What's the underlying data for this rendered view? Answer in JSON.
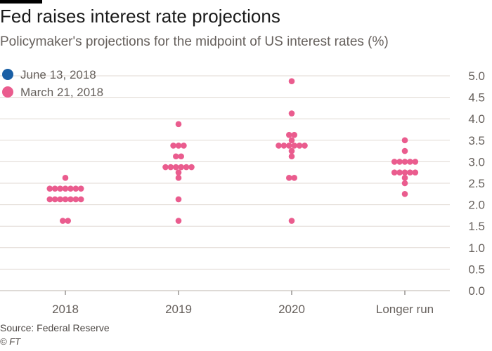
{
  "title": "Fed raises interest rate projections",
  "subtitle": "Policymaker's projections for the midpoint of US interest rates (%)",
  "source": "Source: Federal Reserve",
  "credit": "© FT",
  "colors": {
    "june": "#1a5fa5",
    "march": "#ea5c8e",
    "grid": "#e0d9d3",
    "text": "#66605c"
  },
  "chart_data": {
    "type": "scatter",
    "title": "Fed raises interest rate projections",
    "subtitle": "Policymaker's projections for the midpoint of US interest rates (%)",
    "categories": [
      "2018",
      "2019",
      "2020",
      "Longer run"
    ],
    "ylim": [
      0,
      5
    ],
    "yticks": [
      "5.0",
      "4.5",
      "4.0",
      "3.5",
      "3.0",
      "2.5",
      "2.0",
      "1.5",
      "1.0",
      "0.5",
      "0.0"
    ],
    "grid": true,
    "legend_position": "top-left",
    "series": [
      {
        "name": "June 13, 2018",
        "color": "#1a5fa5",
        "dots": []
      },
      {
        "name": "March 21, 2018",
        "color": "#ea5c8e",
        "dots": [
          {
            "category": "2018",
            "rates": [
              {
                "value": 2.625,
                "count": 1
              },
              {
                "value": 2.375,
                "count": 7
              },
              {
                "value": 2.125,
                "count": 7
              },
              {
                "value": 1.625,
                "count": 2
              }
            ]
          },
          {
            "category": "2019",
            "rates": [
              {
                "value": 3.875,
                "count": 1
              },
              {
                "value": 3.375,
                "count": 3
              },
              {
                "value": 3.125,
                "count": 2
              },
              {
                "value": 2.875,
                "count": 6
              },
              {
                "value": 2.75,
                "count": 1
              },
              {
                "value": 2.625,
                "count": 1
              },
              {
                "value": 2.125,
                "count": 1
              },
              {
                "value": 1.625,
                "count": 1
              }
            ]
          },
          {
            "category": "2020",
            "rates": [
              {
                "value": 4.875,
                "count": 1
              },
              {
                "value": 4.125,
                "count": 1
              },
              {
                "value": 3.625,
                "count": 2
              },
              {
                "value": 3.5,
                "count": 1
              },
              {
                "value": 3.375,
                "count": 6
              },
              {
                "value": 3.25,
                "count": 1
              },
              {
                "value": 3.125,
                "count": 1
              },
              {
                "value": 2.625,
                "count": 2
              },
              {
                "value": 1.625,
                "count": 1
              }
            ]
          },
          {
            "category": "Longer run",
            "rates": [
              {
                "value": 3.5,
                "count": 1
              },
              {
                "value": 3.25,
                "count": 1
              },
              {
                "value": 3.0,
                "count": 5
              },
              {
                "value": 2.75,
                "count": 5
              },
              {
                "value": 2.625,
                "count": 1
              },
              {
                "value": 2.5,
                "count": 1
              },
              {
                "value": 2.25,
                "count": 1
              }
            ]
          }
        ]
      }
    ]
  }
}
